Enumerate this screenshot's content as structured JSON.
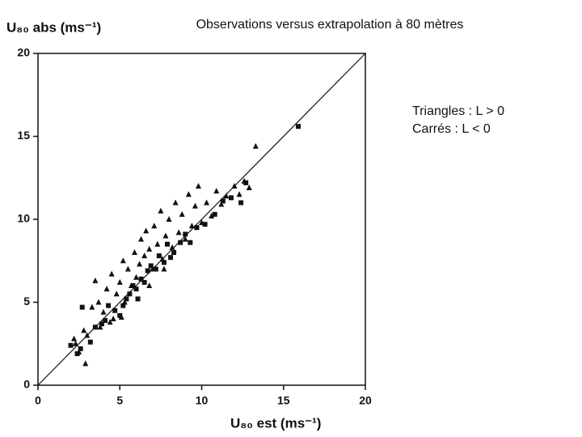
{
  "chart_data": {
    "type": "scatter",
    "title": "Observations versus extrapolation à 80 mètres",
    "x_label": "U₈₀ est (ms⁻¹)",
    "y_label": "U₈₀ abs (ms⁻¹)",
    "xlim": [
      0,
      20
    ],
    "ylim": [
      0,
      20
    ],
    "xticks": [
      0,
      5,
      10,
      15,
      20
    ],
    "yticks": [
      0,
      5,
      10,
      15,
      20
    ],
    "diagonal": true,
    "series": [
      {
        "name": "Triangles : L > 0",
        "color": "#111111",
        "marker": "triangle",
        "x": [
          2.3,
          2.5,
          2.9,
          2.8,
          3.0,
          3.3,
          3.5,
          3.7,
          4.0,
          4.2,
          4.5,
          4.6,
          4.8,
          5.0,
          5.2,
          5.3,
          5.5,
          5.7,
          5.9,
          6.0,
          6.2,
          6.3,
          6.5,
          6.6,
          6.8,
          7.0,
          7.1,
          7.3,
          7.5,
          7.6,
          7.8,
          8.0,
          8.2,
          8.4,
          8.6,
          8.8,
          9.0,
          9.2,
          9.4,
          9.6,
          9.8,
          10.0,
          10.3,
          10.6,
          10.9,
          11.2,
          11.5,
          12.0,
          12.3,
          12.6,
          12.9,
          13.3,
          5.1,
          4.4,
          6.8,
          7.7,
          3.8,
          2.2
        ],
        "values": [
          2.5,
          2.0,
          1.3,
          3.3,
          3.0,
          4.7,
          6.3,
          5.0,
          4.4,
          5.8,
          6.7,
          4.0,
          5.5,
          6.2,
          7.5,
          5.0,
          7.0,
          6.0,
          8.0,
          6.5,
          7.3,
          8.8,
          7.8,
          9.3,
          8.2,
          7.0,
          9.6,
          8.5,
          10.5,
          7.6,
          9.0,
          10.0,
          8.3,
          11.0,
          9.2,
          10.3,
          8.8,
          11.5,
          9.6,
          10.8,
          12.0,
          9.8,
          11.0,
          10.2,
          11.7,
          10.9,
          11.4,
          12.0,
          11.5,
          12.3,
          11.9,
          14.4,
          4.1,
          3.8,
          6.0,
          7.0,
          3.5,
          2.8
        ]
      },
      {
        "name": "Carrés : L < 0",
        "color": "#111111",
        "marker": "square",
        "x": [
          2.0,
          2.4,
          2.6,
          2.7,
          3.2,
          3.5,
          3.9,
          4.1,
          4.3,
          4.7,
          5.0,
          5.4,
          5.6,
          5.8,
          6.0,
          6.3,
          6.5,
          6.7,
          6.9,
          7.2,
          7.4,
          7.7,
          7.9,
          8.1,
          8.3,
          8.7,
          9.0,
          9.3,
          9.7,
          10.2,
          10.8,
          11.3,
          11.8,
          12.4,
          12.7,
          15.9,
          6.1,
          5.2
        ],
        "values": [
          2.4,
          1.9,
          2.2,
          4.7,
          2.6,
          3.5,
          3.7,
          3.9,
          4.8,
          4.5,
          4.2,
          5.2,
          5.5,
          6.0,
          5.8,
          6.4,
          6.2,
          6.9,
          7.2,
          7.0,
          7.8,
          7.4,
          8.5,
          7.7,
          8.0,
          8.6,
          9.1,
          8.6,
          9.5,
          9.7,
          10.3,
          11.1,
          11.3,
          11.0,
          12.2,
          15.6,
          5.2,
          4.8
        ]
      }
    ]
  }
}
